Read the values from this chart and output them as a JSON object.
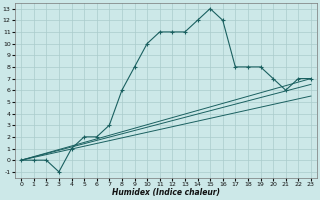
{
  "bg_color": "#cce8e8",
  "grid_color": "#aacccc",
  "line_color": "#1a6060",
  "xlim": [
    -0.5,
    23.5
  ],
  "ylim": [
    -1.5,
    13.5
  ],
  "xticks": [
    0,
    1,
    2,
    3,
    4,
    5,
    6,
    7,
    8,
    9,
    10,
    11,
    12,
    13,
    14,
    15,
    16,
    17,
    18,
    19,
    20,
    21,
    22,
    23
  ],
  "yticks": [
    -1,
    0,
    1,
    2,
    3,
    4,
    5,
    6,
    7,
    8,
    9,
    10,
    11,
    12,
    13
  ],
  "xlabel": "Humidex (Indice chaleur)",
  "line1_x": [
    0,
    1,
    2,
    3,
    4,
    5,
    6,
    7,
    8,
    9,
    10,
    11,
    12,
    13,
    14,
    15,
    16,
    17,
    18,
    19,
    20,
    21,
    22,
    23
  ],
  "line1_y": [
    0,
    0,
    0,
    -1,
    1,
    2,
    2,
    3,
    6,
    8,
    10,
    11,
    11,
    11,
    12,
    13,
    12,
    8,
    8,
    8,
    7,
    6,
    7,
    7
  ],
  "line2_x": [
    0,
    23
  ],
  "line2_y": [
    0,
    7
  ],
  "line3_x": [
    0,
    23
  ],
  "line3_y": [
    0,
    6.5
  ],
  "line4_x": [
    0,
    23
  ],
  "line4_y": [
    0,
    5.5
  ]
}
